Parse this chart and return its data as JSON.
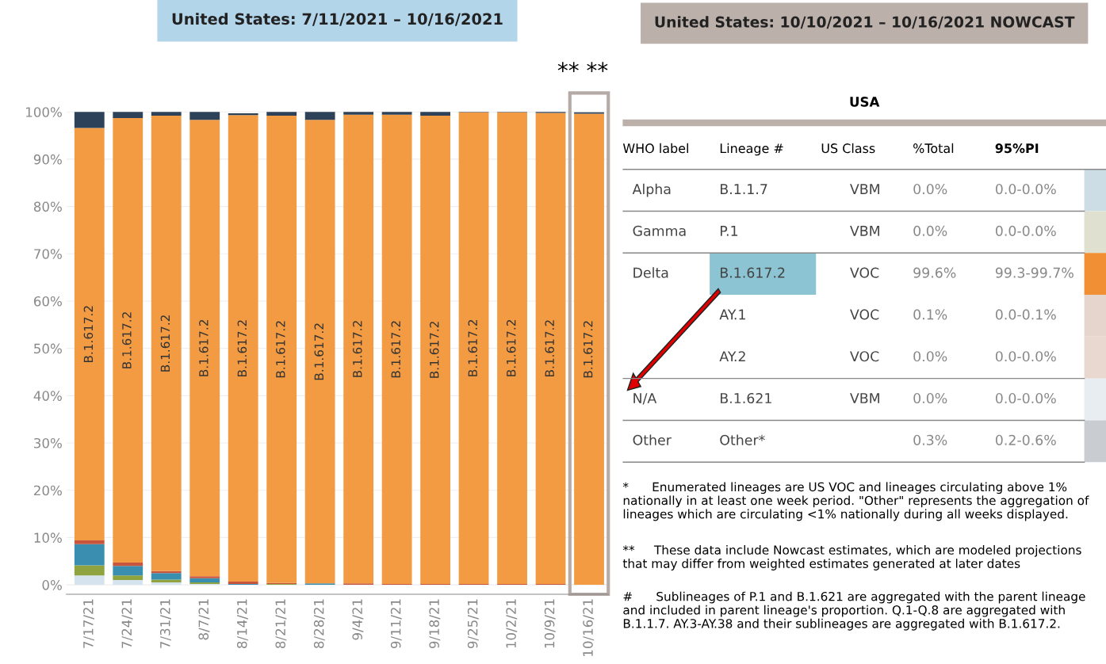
{
  "chart_data": [
    {
      "type": "bar",
      "stacked": true,
      "title": "United States: 7/11/2021 – 10/16/2021",
      "categories": [
        "7/17/21",
        "7/24/21",
        "7/31/21",
        "8/7/21",
        "8/14/21",
        "8/21/21",
        "8/28/21",
        "9/4/21",
        "9/11/21",
        "9/18/21",
        "9/25/21",
        "10/2/21",
        "10/9/21",
        "10/16/21"
      ],
      "series": [
        {
          "color": "#d4e3ee",
          "values": [
            2.0,
            1.0,
            0.5,
            0.2,
            null,
            0,
            0,
            0,
            0,
            0,
            0,
            0,
            0,
            0
          ]
        },
        {
          "color": "#8fa33f",
          "values": [
            2.1,
            1.0,
            0.6,
            0.3,
            null,
            0.2,
            0,
            0,
            0,
            0,
            0,
            0,
            0,
            0
          ]
        },
        {
          "color": "#3a8fb0",
          "values": [
            4.5,
            2.0,
            1.4,
            0.9,
            0.2,
            0,
            0.3,
            0,
            0,
            0,
            0,
            0,
            0,
            0
          ]
        },
        {
          "color": "#c8553d",
          "values": [
            0.8,
            0.7,
            0.4,
            0.4,
            0.5,
            0.2,
            0,
            0.3,
            0.2,
            0.2,
            0.2,
            0.2,
            0.2,
            null
          ]
        },
        {
          "name": "B.1.617.2",
          "color": "#f29b43",
          "values": [
            87.2,
            94.0,
            96.3,
            96.5,
            98.6,
            98.8,
            98.0,
            99.1,
            99.2,
            99.0,
            99.7,
            99.7,
            99.6,
            99.6
          ]
        },
        {
          "color": "#2d4258",
          "values": [
            3.4,
            1.3,
            0.8,
            1.7,
            0.4,
            0.8,
            1.7,
            0.6,
            0.6,
            0.8,
            0.1,
            0.1,
            0.2,
            0.3
          ]
        }
      ],
      "ylim": [
        -2,
        104
      ],
      "yticks": [
        {
          "value": 0,
          "label": "0%"
        },
        {
          "value": 10,
          "label": "10%"
        },
        {
          "value": 20,
          "label": "20%"
        },
        {
          "value": 30,
          "label": "30%"
        },
        {
          "value": 40,
          "label": "40%"
        },
        {
          "value": 50,
          "label": "50%"
        },
        {
          "value": 60,
          "label": "60%"
        },
        {
          "value": 70,
          "label": "70%"
        },
        {
          "value": 80,
          "label": "80%"
        },
        {
          "value": 90,
          "label": "90%"
        },
        {
          "value": 100,
          "label": "100%"
        }
      ],
      "grid": "y",
      "annotations": [
        "** **"
      ]
    },
    {
      "type": "other",
      "title": "United States: 10/10/2021 – 10/16/2021 NOWCAST",
      "subtitle": "USA",
      "categories": [
        "WHO label",
        "Lineage #",
        "US Class",
        "%Total",
        "95%PI"
      ],
      "cell_labels": [
        [
          "Alpha",
          "B.1.1.7",
          "VBM",
          "0.0%",
          "0.0-0.0%"
        ],
        [
          "Gamma",
          "P.1",
          "VBM",
          "0.0%",
          "0.0-0.0%"
        ],
        [
          "Delta",
          "B.1.617.2",
          "VOC",
          "99.6%",
          "99.3-99.7%"
        ],
        [
          null,
          "AY.1",
          "VOC",
          "0.1%",
          "0.0-0.1%"
        ],
        [
          null,
          "AY.2",
          "VOC",
          "0.0%",
          "0.0-0.0%"
        ],
        [
          "N/A",
          "B.1.621",
          "VBM",
          "0.0%",
          "0.0-0.0%"
        ],
        [
          "Other",
          "Other*",
          null,
          "0.3%",
          "0.2-0.6%"
        ]
      ],
      "colors": [
        "#cddde6",
        "#dfe0cf",
        "#f08f33",
        "#e6d5cc",
        "#e9d8cf",
        "#e8edf1",
        "#c9cdd1"
      ],
      "annotations": [
        "*      Enumerated lineages are US VOC and lineages circulating above 1% nationally in at least one week period. \"Other\" represents the aggregation of lineages which are circulating <1% nationally during all weeks displayed.",
        "**     These data include Nowcast estimates, which are modeled projections that may differ from weighted estimates generated at later dates",
        "#      Sublineages of P.1 and B.1.621 are aggregated with the parent lineage and included in parent lineage's proportion. Q.1-Q.8 are aggregated with B.1.1.7. AY.3-AY.38 and their sublineages are aggregated with B.1.617.2."
      ]
    }
  ]
}
